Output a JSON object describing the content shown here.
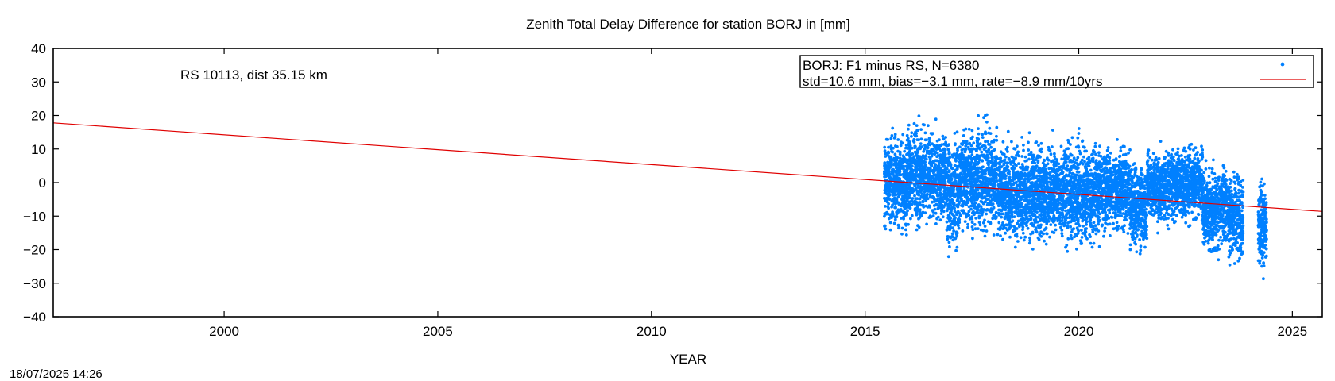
{
  "timestamp": "18/07/2025 14:26",
  "chart_data": {
    "type": "scatter",
    "title": "Zenith Total Delay Difference for station BORJ in [mm]",
    "xlabel": "YEAR",
    "ylabel": "",
    "xlim": [
      1996.0,
      2025.7
    ],
    "ylim": [
      -40,
      40
    ],
    "xticks": [
      2000,
      2005,
      2010,
      2015,
      2020,
      2025
    ],
    "yticks": [
      -40,
      -30,
      -20,
      -10,
      0,
      10,
      20,
      30,
      40
    ],
    "annotation": "RS 10113, dist 35.15 km",
    "legend_position": "top-right",
    "legend": [
      {
        "label": "BORJ: F1 minus RS, N=6380",
        "kind": "points",
        "color": "#0080ff"
      },
      {
        "label": "std=10.6 mm, bias=−3.1 mm, rate=−8.9 mm/10yrs",
        "kind": "line",
        "color": "#e00000"
      }
    ],
    "series": [
      {
        "name": "BORJ: F1 minus RS, N=6380",
        "color": "#0080ff",
        "n_points": 6380,
        "std": 10.6,
        "bias": -3.1,
        "segments": [
          {
            "from": 2015.45,
            "to": 2016.0,
            "mean": 0,
            "std": 10
          },
          {
            "from": 2016.0,
            "to": 2016.9,
            "mean": 2,
            "std": 10
          },
          {
            "from": 2016.9,
            "to": 2017.2,
            "mean": -3,
            "std": 12
          },
          {
            "from": 2017.2,
            "to": 2018.1,
            "mean": 1,
            "std": 11
          },
          {
            "from": 2018.1,
            "to": 2018.8,
            "mean": -3,
            "std": 10
          },
          {
            "from": 2018.8,
            "to": 2019.6,
            "mean": -3,
            "std": 10
          },
          {
            "from": 2019.6,
            "to": 2020.6,
            "mean": -3,
            "std": 11
          },
          {
            "from": 2020.6,
            "to": 2021.2,
            "mean": -2,
            "std": 9
          },
          {
            "from": 2021.2,
            "to": 2021.6,
            "mean": -7,
            "std": 9
          },
          {
            "from": 2021.6,
            "to": 2022.3,
            "mean": -1,
            "std": 8
          },
          {
            "from": 2022.3,
            "to": 2022.9,
            "mean": 0,
            "std": 8
          },
          {
            "from": 2022.9,
            "to": 2023.5,
            "mean": -8,
            "std": 9
          },
          {
            "from": 2023.5,
            "to": 2023.85,
            "mean": -10,
            "std": 10
          },
          {
            "from": 2024.2,
            "to": 2024.4,
            "mean": -12,
            "std": 9
          }
        ]
      },
      {
        "name": "trend",
        "color": "#e00000",
        "kind": "line",
        "x": [
          1996.0,
          2025.7
        ],
        "y": [
          17.8,
          -8.6
        ]
      }
    ]
  }
}
